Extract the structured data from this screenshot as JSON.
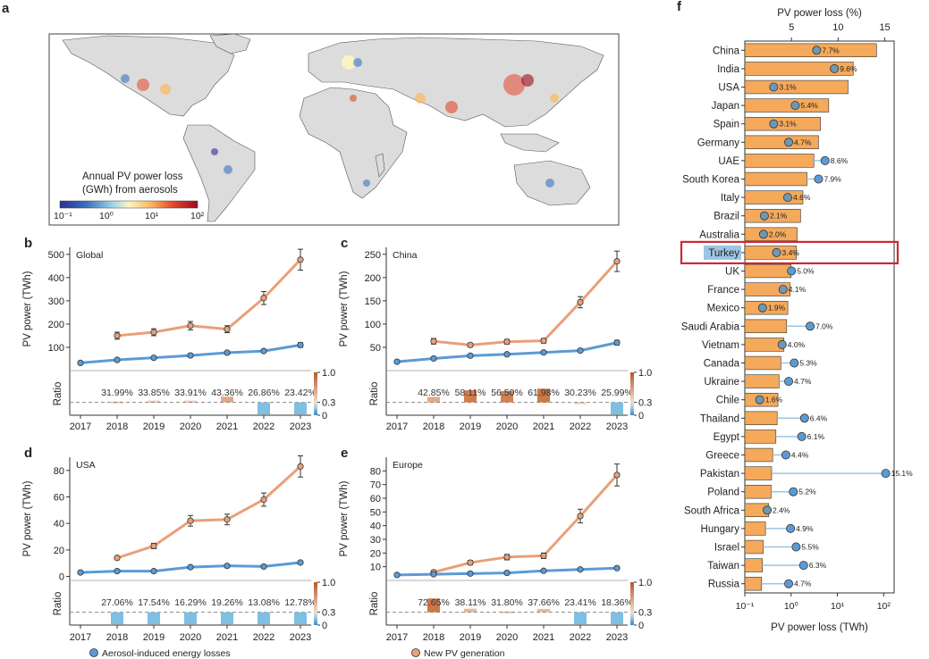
{
  "panel_letters": {
    "a": "a",
    "b": "b",
    "c": "c",
    "d": "d",
    "e": "e",
    "f": "f"
  },
  "map": {
    "title_line1": "Annual PV power loss",
    "title_line2": "(GWh) from aerosols",
    "colorbar_ticks": [
      "10⁻¹",
      "10⁰",
      "10¹",
      "10²"
    ]
  },
  "legend": {
    "aerosol": "Aerosol-induced energy losses",
    "new_pv": "New PV generation"
  },
  "colors": {
    "aerosol": "#5b9bd5",
    "new_pv": "#e8a07a",
    "bar_orange": "#f5a95a",
    "highlight_box": "#cc2a36"
  },
  "chart_data": [
    {
      "type": "line",
      "panel": "b",
      "region": "Global",
      "ylabel": "PV power (TWh)",
      "x": [
        "2017",
        "2018",
        "2019",
        "2020",
        "2021",
        "2022",
        "2023"
      ],
      "ylim": [
        0,
        530
      ],
      "yticks": [
        "100",
        "200",
        "300",
        "400",
        "500"
      ],
      "series": [
        {
          "name": "New PV generation",
          "x": [
            "2018",
            "2019",
            "2020",
            "2021",
            "2022",
            "2023"
          ],
          "values": [
            150,
            165,
            193,
            178,
            312,
            477
          ],
          "err": [
            15,
            15,
            18,
            15,
            28,
            45
          ]
        },
        {
          "name": "Aerosol-induced energy losses",
          "x": [
            "2017",
            "2018",
            "2019",
            "2020",
            "2021",
            "2022",
            "2023"
          ],
          "values": [
            33,
            46,
            55,
            65,
            77,
            84,
            110
          ],
          "err": [
            0,
            0,
            0,
            0,
            0,
            0,
            10
          ]
        }
      ],
      "ratio": {
        "ylabel": "Ratio",
        "yticks": [
          "1.0",
          "0.3",
          "0"
        ],
        "labels": [
          "31.99%",
          "33.85%",
          "33.91%",
          "43.36%",
          "26.86%",
          "23.42%"
        ],
        "values": [
          0.3199,
          0.3385,
          0.3391,
          0.4336,
          0.2686,
          0.2342
        ]
      }
    },
    {
      "type": "line",
      "panel": "c",
      "region": "China",
      "ylabel": "PV power (TWh)",
      "x": [
        "2017",
        "2018",
        "2019",
        "2020",
        "2021",
        "2022",
        "2023"
      ],
      "ylim": [
        0,
        265
      ],
      "yticks": [
        "50",
        "100",
        "150",
        "200",
        "250"
      ],
      "series": [
        {
          "name": "New PV generation",
          "x": [
            "2018",
            "2019",
            "2020",
            "2021",
            "2022",
            "2023"
          ],
          "values": [
            63,
            55,
            62,
            64,
            147,
            235
          ],
          "err": [
            6,
            4,
            5,
            5,
            12,
            22
          ]
        },
        {
          "name": "Aerosol-induced energy losses",
          "x": [
            "2017",
            "2018",
            "2019",
            "2020",
            "2021",
            "2022",
            "2023"
          ],
          "values": [
            19,
            26,
            32,
            35,
            39,
            43,
            60
          ],
          "err": [
            0,
            0,
            0,
            0,
            0,
            0,
            5
          ]
        }
      ],
      "ratio": {
        "ylabel": "Ratio",
        "yticks": [
          "1.0",
          "0.3",
          "0"
        ],
        "labels": [
          "42.85%",
          "58.11%",
          "56.50%",
          "61.98%",
          "30.23%",
          "25.99%"
        ],
        "values": [
          0.4285,
          0.5811,
          0.565,
          0.6198,
          0.3023,
          0.2599
        ]
      }
    },
    {
      "type": "line",
      "panel": "d",
      "region": "USA",
      "ylabel": "PV power (TWh)",
      "x": [
        "2017",
        "2018",
        "2019",
        "2020",
        "2021",
        "2022",
        "2023"
      ],
      "ylim": [
        -3,
        90
      ],
      "yticks": [
        "0",
        "20",
        "40",
        "60",
        "80"
      ],
      "series": [
        {
          "name": "New PV generation",
          "x": [
            "2018",
            "2019",
            "2020",
            "2021",
            "2022",
            "2023"
          ],
          "values": [
            14,
            23,
            42,
            43,
            58,
            83
          ],
          "err": [
            1,
            2,
            4,
            4,
            5,
            8
          ]
        },
        {
          "name": "Aerosol-induced energy losses",
          "x": [
            "2017",
            "2018",
            "2019",
            "2020",
            "2021",
            "2022",
            "2023"
          ],
          "values": [
            3,
            4,
            4,
            7,
            8,
            7.5,
            10.5
          ],
          "err": [
            0,
            0,
            0,
            0,
            0,
            0,
            1
          ]
        }
      ],
      "ratio": {
        "ylabel": "Ratio",
        "yticks": [
          "1.0",
          "0.3",
          "0"
        ],
        "labels": [
          "27.06%",
          "17.54%",
          "16.29%",
          "19.26%",
          "13.08%",
          "12.78%"
        ],
        "values": [
          0.2706,
          0.1754,
          0.1629,
          0.1926,
          0.1308,
          0.1278
        ]
      }
    },
    {
      "type": "line",
      "panel": "e",
      "region": "Europe",
      "ylabel": "PV power (TWh)",
      "x": [
        "2017",
        "2018",
        "2019",
        "2020",
        "2021",
        "2022",
        "2023"
      ],
      "ylim": [
        0,
        90
      ],
      "yticks": [
        "10",
        "20",
        "30",
        "40",
        "50",
        "60",
        "70",
        "80"
      ],
      "series": [
        {
          "name": "New PV generation",
          "x": [
            "2018",
            "2019",
            "2020",
            "2021",
            "2022",
            "2023"
          ],
          "values": [
            6,
            13,
            17,
            18,
            47,
            77
          ],
          "err": [
            1,
            1.5,
            2,
            2,
            5,
            8
          ]
        },
        {
          "name": "Aerosol-induced energy losses",
          "x": [
            "2017",
            "2018",
            "2019",
            "2020",
            "2021",
            "2022",
            "2023"
          ],
          "values": [
            4,
            4.5,
            5,
            5.5,
            7,
            8,
            9
          ],
          "err": [
            0,
            0,
            0,
            0,
            0,
            0,
            1
          ]
        }
      ],
      "ratio": {
        "ylabel": "Ratio",
        "yticks": [
          "1.0",
          "0.3",
          "0"
        ],
        "labels": [
          "72.65%",
          "38.11%",
          "31.80%",
          "37.66%",
          "23.41%",
          "18.36%"
        ],
        "values": [
          0.7265,
          0.3811,
          0.318,
          0.3766,
          0.2341,
          0.1836
        ]
      }
    },
    {
      "type": "bar",
      "panel": "f",
      "orientation": "horizontal",
      "xlabel_top": "PV power loss (%)",
      "xlabel_bottom": "PV power loss (TWh)",
      "top_ticks": [
        "5",
        "10",
        "15"
      ],
      "bottom_ticks": [
        "10⁻¹",
        "10⁰",
        "10¹",
        "10²"
      ],
      "highlighted": "Turkey",
      "categories": [
        "China",
        "India",
        "USA",
        "Japan",
        "Spain",
        "Germany",
        "UAE",
        "South Korea",
        "Italy",
        "Brazil",
        "Australia",
        "Turkey",
        "UK",
        "France",
        "Mexico",
        "Saudi Arabia",
        "Vietnam",
        "Canada",
        "Ukraine",
        "Chile",
        "Thailand",
        "Egypt",
        "Greece",
        "Pakistan",
        "Poland",
        "South Africa",
        "Hungary",
        "Israel",
        "Taiwan",
        "Russia"
      ],
      "loss_percent_labels": [
        "7.7%",
        "9.6%",
        "3.1%",
        "5.4%",
        "3.1%",
        "4.7%",
        "8.6%",
        "7.9%",
        "4.6%",
        "2.1%",
        "2.0%",
        "3.4%",
        "5.0%",
        "4.1%",
        "1.9%",
        "7.0%",
        "4.0%",
        "5.3%",
        "4.7%",
        "1.6%",
        "6.4%",
        "6.1%",
        "4.4%",
        "15.1%",
        "5.2%",
        "2.4%",
        "4.9%",
        "5.5%",
        "6.3%",
        "4.7%"
      ],
      "loss_percent": [
        7.7,
        9.6,
        3.1,
        5.4,
        3.1,
        4.7,
        8.6,
        7.9,
        4.6,
        2.1,
        2.0,
        3.4,
        5.0,
        4.1,
        1.9,
        7.0,
        4.0,
        5.3,
        4.7,
        1.6,
        6.4,
        6.1,
        4.4,
        15.1,
        5.2,
        2.4,
        4.9,
        5.5,
        6.3,
        4.7
      ],
      "loss_twh": [
        70,
        22,
        17,
        6.5,
        4.3,
        3.9,
        3.1,
        2.2,
        1.8,
        1.6,
        1.35,
        1.3,
        1.0,
        0.95,
        0.85,
        0.8,
        0.7,
        0.6,
        0.55,
        0.52,
        0.5,
        0.47,
        0.4,
        0.38,
        0.37,
        0.33,
        0.28,
        0.25,
        0.24,
        0.23
      ]
    }
  ]
}
